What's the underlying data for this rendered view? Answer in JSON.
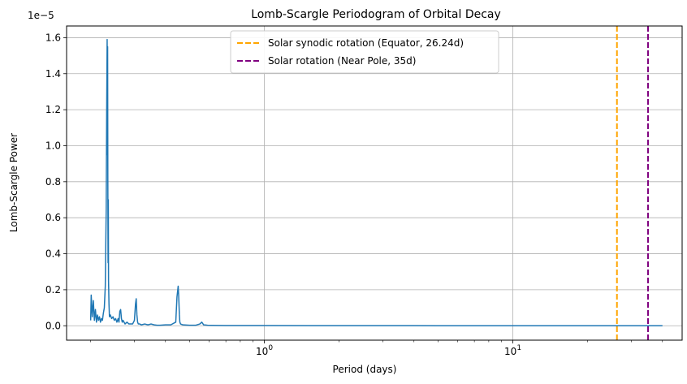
{
  "chart_data": {
    "type": "line",
    "title": "Lomb-Scargle Periodogram of Orbital Decay",
    "xlabel": "Period (days)",
    "ylabel": "Lomb-Scargle Power",
    "y_offset_label": "1e−5",
    "x_scale": "log",
    "xlim": [
      0.16,
      48
    ],
    "ylim": [
      -0.08,
      1.665
    ],
    "x_ticks": [
      {
        "value": 1,
        "base": "10",
        "exp": "0"
      },
      {
        "value": 10,
        "base": "10",
        "exp": "1"
      }
    ],
    "y_ticks": [
      {
        "value": 0.0,
        "label": "0.0"
      },
      {
        "value": 0.2,
        "label": "0.2"
      },
      {
        "value": 0.4,
        "label": "0.4"
      },
      {
        "value": 0.6,
        "label": "0.6"
      },
      {
        "value": 0.8,
        "label": "0.8"
      },
      {
        "value": 1.0,
        "label": "1.0"
      },
      {
        "value": 1.2,
        "label": "1.2"
      },
      {
        "value": 1.4,
        "label": "1.4"
      },
      {
        "value": 1.6,
        "label": "1.6"
      }
    ],
    "grid": true,
    "legend_position": "top-center",
    "series": [
      {
        "color": "#1f77b4",
        "x": [
          0.2,
          0.201,
          0.203,
          0.205,
          0.207,
          0.209,
          0.211,
          0.213,
          0.215,
          0.217,
          0.219,
          0.221,
          0.223,
          0.225,
          0.227,
          0.229,
          0.231,
          0.232,
          0.233,
          0.2335,
          0.234,
          0.2345,
          0.235,
          0.2355,
          0.236,
          0.237,
          0.238,
          0.24,
          0.243,
          0.246,
          0.249,
          0.252,
          0.255,
          0.258,
          0.26,
          0.262,
          0.264,
          0.266,
          0.268,
          0.27,
          0.275,
          0.28,
          0.285,
          0.29,
          0.295,
          0.3,
          0.303,
          0.305,
          0.307,
          0.309,
          0.311,
          0.315,
          0.32,
          0.33,
          0.34,
          0.35,
          0.36,
          0.37,
          0.38,
          0.4,
          0.42,
          0.44,
          0.445,
          0.45,
          0.452,
          0.455,
          0.457,
          0.46,
          0.47,
          0.5,
          0.53,
          0.55,
          0.56,
          0.57,
          0.6,
          0.7,
          0.8,
          1.0,
          2.0,
          5.0,
          10.0,
          20.0,
          30.0,
          40.0
        ],
        "y": [
          0.03,
          0.17,
          0.05,
          0.14,
          0.03,
          0.09,
          0.02,
          0.06,
          0.03,
          0.05,
          0.02,
          0.04,
          0.03,
          0.07,
          0.1,
          0.22,
          0.65,
          1.19,
          1.59,
          0.95,
          1.55,
          0.8,
          0.35,
          0.7,
          0.25,
          0.12,
          0.05,
          0.06,
          0.04,
          0.05,
          0.03,
          0.04,
          0.02,
          0.04,
          0.02,
          0.08,
          0.09,
          0.04,
          0.02,
          0.03,
          0.01,
          0.02,
          0.01,
          0.01,
          0.01,
          0.03,
          0.12,
          0.15,
          0.06,
          0.02,
          0.01,
          0.01,
          0.005,
          0.01,
          0.005,
          0.01,
          0.005,
          0.003,
          0.003,
          0.005,
          0.005,
          0.02,
          0.16,
          0.22,
          0.17,
          0.06,
          0.02,
          0.01,
          0.005,
          0.003,
          0.003,
          0.01,
          0.02,
          0.005,
          0.002,
          0.001,
          0.001,
          0.001,
          0.0005,
          0.0003,
          0.0002,
          0.0002,
          0.0001,
          0.0001
        ]
      }
    ],
    "vlines": [
      {
        "name": "Solar synodic rotation (Equator, 26.24d)",
        "x": 26.24,
        "color": "#ffa500"
      },
      {
        "name": "Solar rotation (Near Pole, 35d)",
        "x": 35,
        "color": "#800080"
      }
    ]
  }
}
